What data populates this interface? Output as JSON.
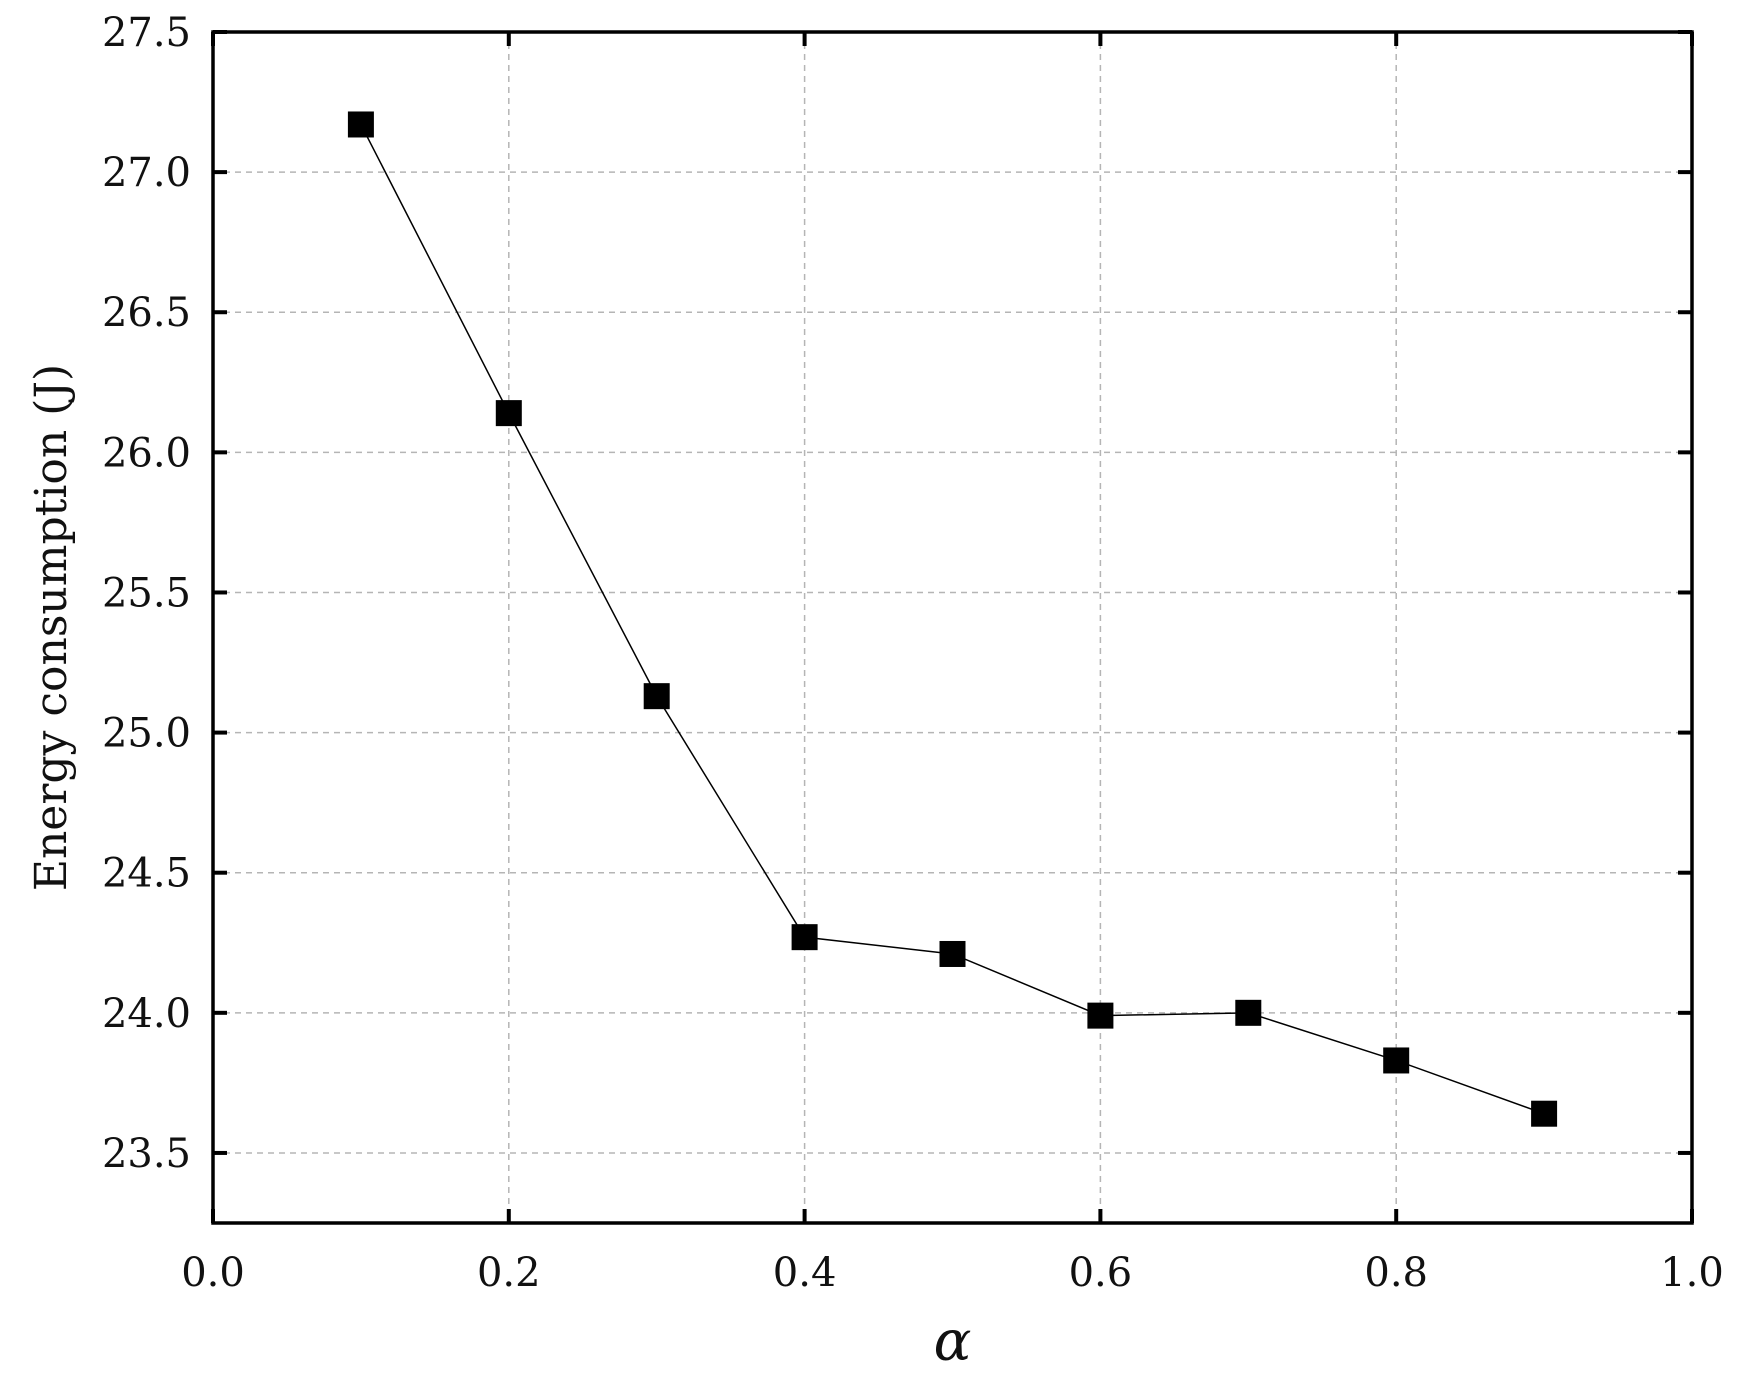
{
  "chart_data": {
    "type": "line",
    "title": "",
    "xlabel": "α",
    "ylabel": "Energy consumption (J)",
    "xlim": [
      0.0,
      1.0
    ],
    "ylim": [
      23.25,
      27.5
    ],
    "xticks": [
      0.0,
      0.2,
      0.4,
      0.6,
      0.8,
      1.0
    ],
    "xtick_labels": [
      "0.0",
      "0.2",
      "0.4",
      "0.6",
      "0.8",
      "1.0"
    ],
    "yticks": [
      23.5,
      24.0,
      24.5,
      25.0,
      25.5,
      26.0,
      26.5,
      27.0,
      27.5
    ],
    "ytick_labels": [
      "23.5",
      "24.0",
      "24.5",
      "25.0",
      "25.5",
      "26.0",
      "26.5",
      "27.0",
      "27.5"
    ],
    "grid": true,
    "marker": "square",
    "colors": {
      "line": "#000000",
      "marker": "#000000",
      "grid": "#b5b5b5"
    },
    "series": [
      {
        "x": [
          0.1,
          0.2,
          0.3,
          0.4,
          0.5,
          0.6,
          0.7,
          0.8,
          0.9
        ],
        "values": [
          27.17,
          26.14,
          25.13,
          24.27,
          24.21,
          23.99,
          24.0,
          23.83,
          23.64
        ]
      }
    ]
  }
}
